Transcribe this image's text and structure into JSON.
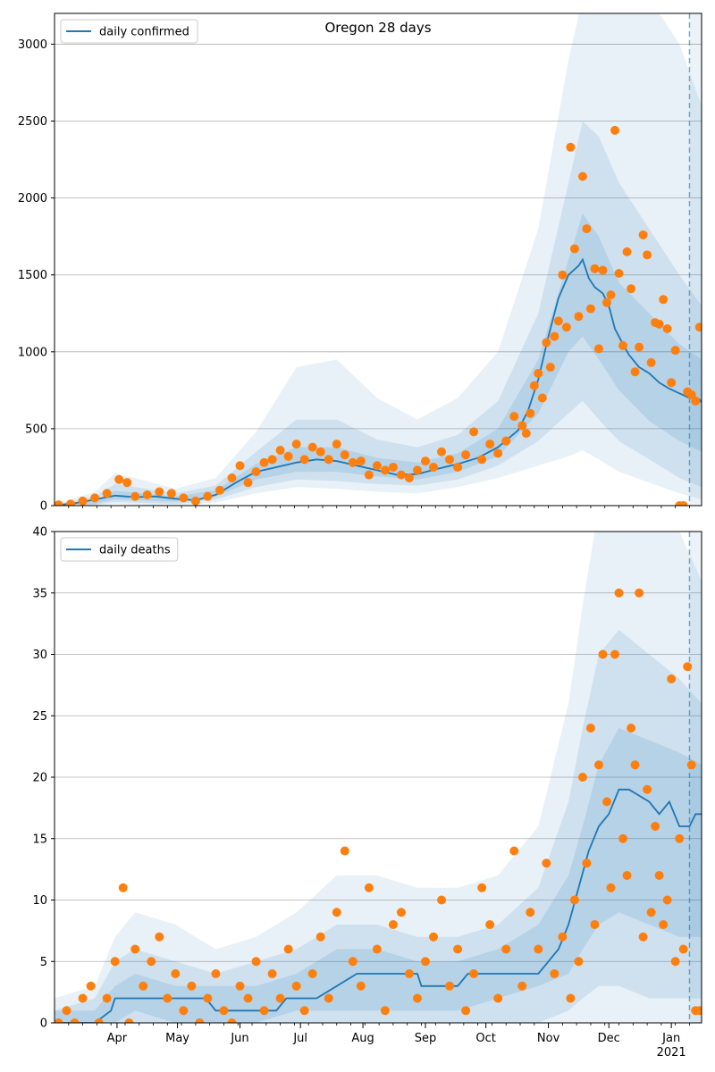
{
  "chart_data": [
    {
      "type": "line",
      "title": "Oregon 28 days",
      "xlabel": "",
      "ylabel": "",
      "ylim": [
        0,
        3200
      ],
      "yticks": [
        0,
        500,
        1000,
        1500,
        2000,
        2500,
        3000
      ],
      "grid": "horizontal",
      "legend_position": "top-left",
      "x_range_days_from_mar1": [
        0,
        321
      ],
      "forecast_start_day": 315,
      "series": [
        {
          "name": "daily confirmed",
          "kind": "line",
          "color": "#1f77b4",
          "x": [
            0,
            10,
            20,
            30,
            40,
            50,
            60,
            70,
            80,
            90,
            100,
            110,
            120,
            130,
            140,
            150,
            160,
            170,
            180,
            190,
            200,
            210,
            220,
            230,
            235,
            240,
            245,
            250,
            255,
            260,
            262,
            265,
            268,
            272,
            275,
            278,
            282,
            285,
            290,
            295,
            300,
            305,
            310,
            315,
            320,
            321
          ],
          "values": [
            2,
            15,
            40,
            65,
            55,
            60,
            45,
            35,
            70,
            150,
            220,
            250,
            280,
            300,
            290,
            260,
            230,
            200,
            205,
            240,
            270,
            310,
            380,
            490,
            620,
            820,
            1100,
            1350,
            1500,
            1560,
            1600,
            1480,
            1420,
            1380,
            1300,
            1150,
            1050,
            980,
            900,
            860,
            800,
            760,
            730,
            700,
            690,
            670
          ]
        },
        {
          "name": "observed",
          "kind": "scatter",
          "color": "#ff7f0e",
          "x": [
            2,
            8,
            14,
            20,
            26,
            32,
            36,
            40,
            46,
            52,
            58,
            64,
            70,
            76,
            82,
            88,
            92,
            96,
            100,
            104,
            108,
            112,
            116,
            120,
            124,
            128,
            132,
            136,
            140,
            144,
            148,
            152,
            156,
            160,
            164,
            168,
            172,
            176,
            180,
            184,
            188,
            192,
            196,
            200,
            204,
            208,
            212,
            216,
            220,
            224,
            228,
            232,
            234,
            236,
            238,
            240,
            242,
            244,
            246,
            248,
            250,
            252,
            254,
            256,
            258,
            260,
            262,
            264,
            266,
            268,
            270,
            272,
            274,
            276,
            278,
            280,
            282,
            284,
            286,
            288,
            290,
            292,
            294,
            296,
            298,
            300,
            302,
            304,
            306,
            308,
            310,
            312,
            314,
            316,
            318,
            320
          ],
          "values": [
            5,
            10,
            30,
            50,
            80,
            170,
            150,
            60,
            70,
            90,
            80,
            50,
            30,
            60,
            100,
            180,
            260,
            150,
            220,
            280,
            300,
            360,
            320,
            400,
            300,
            380,
            350,
            300,
            400,
            330,
            280,
            290,
            200,
            260,
            230,
            250,
            200,
            180,
            230,
            290,
            250,
            350,
            300,
            250,
            330,
            480,
            300,
            400,
            340,
            420,
            580,
            520,
            470,
            600,
            780,
            860,
            700,
            1060,
            900,
            1100,
            1200,
            1500,
            1160,
            2330,
            1670,
            1230,
            2140,
            1800,
            1280,
            1540,
            1020,
            1530,
            1320,
            1370,
            2440,
            1510,
            1040,
            1650,
            1410,
            870,
            1030,
            1760,
            1630,
            930,
            1190,
            1180,
            1340,
            1150,
            800,
            1010,
            0,
            0,
            740,
            720,
            680,
            1160
          ]
        }
      ],
      "bands": [
        {
          "label": "outer",
          "color": "#1f77b4",
          "opacity": 0.1,
          "x": [
            0,
            20,
            30,
            40,
            60,
            80,
            100,
            120,
            140,
            160,
            180,
            200,
            220,
            240,
            255,
            262,
            270,
            280,
            295,
            310,
            321
          ],
          "lower": [
            0,
            0,
            10,
            5,
            0,
            20,
            80,
            120,
            110,
            90,
            80,
            120,
            180,
            260,
            320,
            360,
            300,
            220,
            150,
            80,
            40
          ],
          "upper": [
            10,
            90,
            210,
            180,
            110,
            180,
            480,
            900,
            950,
            700,
            560,
            700,
            1000,
            1800,
            2900,
            3300,
            3300,
            3300,
            3300,
            3000,
            2600
          ]
        },
        {
          "label": "middle",
          "color": "#1f77b4",
          "opacity": 0.12,
          "x": [
            0,
            20,
            30,
            40,
            60,
            80,
            100,
            120,
            140,
            160,
            180,
            200,
            220,
            240,
            255,
            262,
            270,
            280,
            295,
            310,
            321
          ],
          "lower": [
            0,
            5,
            25,
            20,
            10,
            40,
            120,
            170,
            160,
            140,
            130,
            170,
            260,
            420,
            600,
            680,
            560,
            420,
            300,
            180,
            120
          ],
          "upper": [
            5,
            60,
            140,
            120,
            80,
            130,
            350,
            560,
            560,
            430,
            380,
            460,
            680,
            1250,
            2100,
            2500,
            2400,
            2100,
            1800,
            1500,
            1300
          ]
        },
        {
          "label": "inner",
          "color": "#1f77b4",
          "opacity": 0.14,
          "x": [
            0,
            20,
            30,
            40,
            60,
            80,
            100,
            120,
            140,
            160,
            180,
            200,
            220,
            240,
            255,
            262,
            270,
            280,
            295,
            310,
            321
          ],
          "lower": [
            0,
            10,
            40,
            35,
            25,
            60,
            170,
            220,
            220,
            190,
            170,
            220,
            320,
            600,
            1000,
            1100,
            950,
            750,
            550,
            420,
            350
          ],
          "upper": [
            3,
            35,
            95,
            85,
            60,
            100,
            270,
            380,
            380,
            310,
            280,
            340,
            500,
            950,
            1600,
            1900,
            1750,
            1450,
            1250,
            1050,
            950
          ]
        }
      ]
    },
    {
      "type": "line",
      "title": "",
      "xlabel": "",
      "ylabel": "",
      "ylim": [
        0,
        40
      ],
      "yticks": [
        0,
        5,
        10,
        15,
        20,
        25,
        30,
        35,
        40
      ],
      "grid": "horizontal",
      "legend_position": "top-left",
      "x_range_days_from_mar1": [
        0,
        321
      ],
      "forecast_start_day": 315,
      "xtick_labels": [
        {
          "day": 31,
          "label": "Apr"
        },
        {
          "day": 61,
          "label": "May"
        },
        {
          "day": 92,
          "label": "Jun"
        },
        {
          "day": 122,
          "label": "Jul"
        },
        {
          "day": 153,
          "label": "Aug"
        },
        {
          "day": 184,
          "label": "Sep"
        },
        {
          "day": 214,
          "label": "Oct"
        },
        {
          "day": 245,
          "label": "Nov"
        },
        {
          "day": 275,
          "label": "Dec"
        },
        {
          "day": 306,
          "label": "Jan"
        }
      ],
      "xtick_sublabel": {
        "day": 306,
        "label": "2021"
      },
      "series": [
        {
          "name": "daily deaths",
          "kind": "line",
          "color": "#1f77b4",
          "x": [
            0,
            20,
            28,
            30,
            60,
            75,
            80,
            85,
            110,
            115,
            130,
            140,
            150,
            155,
            170,
            180,
            182,
            190,
            200,
            205,
            210,
            240,
            245,
            250,
            255,
            260,
            265,
            270,
            275,
            280,
            285,
            295,
            300,
            305,
            310,
            315,
            318,
            321
          ],
          "values": [
            0,
            0,
            1,
            2,
            2,
            2,
            1,
            1,
            1,
            2,
            2,
            3,
            4,
            4,
            4,
            4,
            3,
            3,
            3,
            4,
            4,
            4,
            5,
            6,
            8,
            11,
            14,
            16,
            17,
            19,
            19,
            18,
            17,
            18,
            16,
            16,
            17,
            17
          ]
        },
        {
          "name": "observed",
          "kind": "scatter",
          "color": "#ff7f0e",
          "x": [
            2,
            6,
            10,
            14,
            18,
            22,
            26,
            30,
            34,
            37,
            40,
            44,
            48,
            52,
            56,
            60,
            64,
            68,
            72,
            76,
            80,
            84,
            88,
            92,
            96,
            100,
            104,
            108,
            112,
            116,
            120,
            124,
            128,
            132,
            136,
            140,
            144,
            148,
            152,
            156,
            160,
            164,
            168,
            172,
            176,
            180,
            184,
            188,
            192,
            196,
            200,
            204,
            208,
            212,
            216,
            220,
            224,
            228,
            232,
            236,
            240,
            244,
            248,
            252,
            256,
            258,
            260,
            262,
            264,
            266,
            268,
            270,
            272,
            274,
            276,
            278,
            280,
            282,
            284,
            286,
            288,
            290,
            292,
            294,
            296,
            298,
            300,
            302,
            304,
            306,
            308,
            310,
            312,
            314,
            316,
            318,
            320
          ],
          "values": [
            0,
            1,
            0,
            2,
            3,
            0,
            2,
            5,
            11,
            0,
            6,
            3,
            5,
            7,
            2,
            4,
            1,
            3,
            0,
            2,
            4,
            1,
            0,
            3,
            2,
            5,
            1,
            4,
            2,
            6,
            3,
            1,
            4,
            7,
            2,
            9,
            14,
            5,
            3,
            11,
            6,
            1,
            8,
            9,
            4,
            2,
            5,
            7,
            10,
            3,
            6,
            1,
            4,
            11,
            8,
            2,
            6,
            14,
            3,
            9,
            6,
            13,
            4,
            7,
            2,
            10,
            5,
            20,
            13,
            24,
            8,
            21,
            30,
            18,
            11,
            30,
            35,
            15,
            12,
            24,
            21,
            35,
            7,
            19,
            9,
            16,
            12,
            8,
            10,
            28,
            5,
            15,
            6,
            29,
            21,
            1,
            1
          ]
        }
      ],
      "bands": [
        {
          "label": "outer",
          "color": "#1f77b4",
          "opacity": 0.1,
          "x": [
            0,
            20,
            30,
            40,
            60,
            80,
            100,
            120,
            140,
            160,
            180,
            200,
            220,
            240,
            255,
            262,
            270,
            280,
            295,
            310,
            321
          ],
          "lower": [
            0,
            0,
            0,
            0,
            0,
            0,
            0,
            0,
            0,
            0,
            0,
            0,
            0,
            0,
            0,
            0,
            0,
            0,
            0,
            0,
            0
          ],
          "upper": [
            2,
            3,
            7,
            9,
            8,
            6,
            7,
            9,
            12,
            12,
            11,
            11,
            12,
            16,
            26,
            34,
            42,
            42,
            42,
            40,
            36
          ]
        },
        {
          "label": "middle",
          "color": "#1f77b4",
          "opacity": 0.12,
          "x": [
            0,
            20,
            30,
            40,
            60,
            80,
            100,
            120,
            140,
            160,
            180,
            200,
            220,
            240,
            255,
            262,
            270,
            280,
            295,
            310,
            321
          ],
          "lower": [
            0,
            0,
            0,
            0,
            0,
            0,
            0,
            0,
            0,
            0,
            0,
            0,
            0,
            0,
            1,
            2,
            3,
            3,
            2,
            2,
            2
          ],
          "upper": [
            1,
            2,
            5,
            6,
            5,
            4,
            5,
            6,
            8,
            8,
            7,
            7,
            8,
            11,
            18,
            24,
            30,
            32,
            30,
            28,
            26
          ]
        },
        {
          "label": "inner",
          "color": "#1f77b4",
          "opacity": 0.14,
          "x": [
            0,
            20,
            30,
            40,
            60,
            80,
            100,
            120,
            140,
            160,
            180,
            200,
            220,
            240,
            255,
            262,
            270,
            280,
            295,
            310,
            321
          ],
          "lower": [
            0,
            0,
            0,
            1,
            0,
            0,
            0,
            1,
            1,
            1,
            1,
            1,
            2,
            3,
            4,
            6,
            8,
            9,
            8,
            7,
            7
          ],
          "upper": [
            1,
            1,
            3,
            4,
            3,
            3,
            3,
            4,
            6,
            6,
            5,
            5,
            6,
            8,
            12,
            16,
            21,
            24,
            23,
            22,
            21
          ]
        }
      ]
    }
  ]
}
